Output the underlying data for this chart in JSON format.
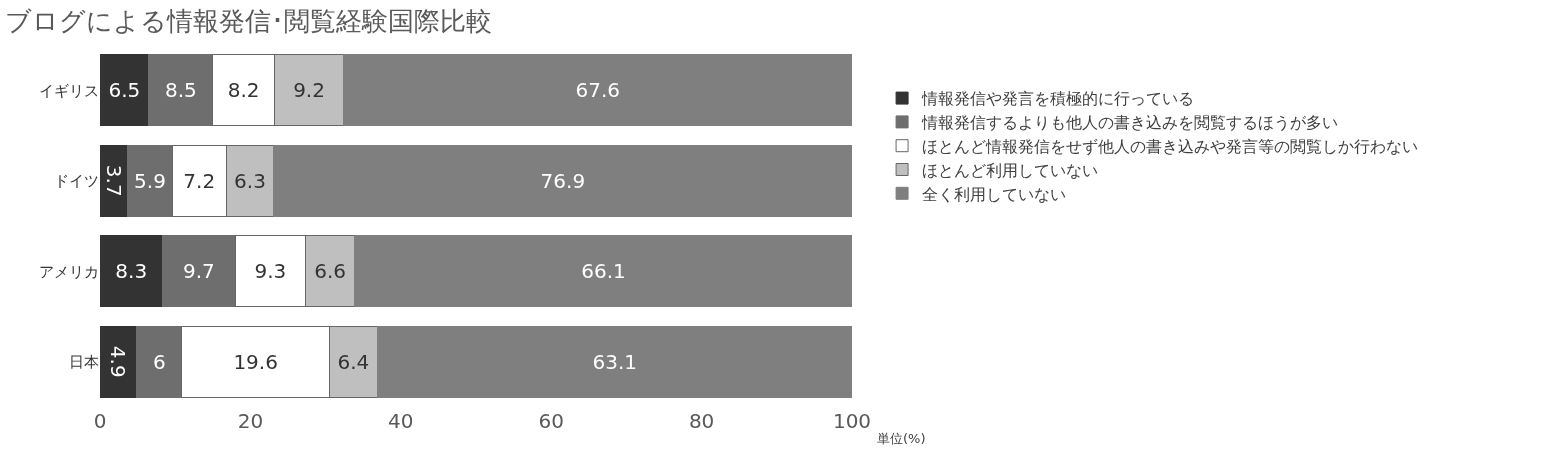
{
  "chart_data": {
    "type": "bar",
    "title": "ブログによる情報発信･閲覧経験国際比較",
    "orientation": "horizontal",
    "stacked": true,
    "categories": [
      "イギリス",
      "ドイツ",
      "アメリカ",
      "日本"
    ],
    "series": [
      {
        "name": "情報発信や発言を積極的に行っている",
        "color": "#333333",
        "values": [
          6.5,
          3.7,
          8.3,
          4.9
        ]
      },
      {
        "name": "情報発信するよりも他人の書き込みを閲覧するほうが多い",
        "color": "#6e6e6e",
        "values": [
          8.5,
          5.9,
          9.7,
          6
        ]
      },
      {
        "name": "ほとんど情報発信をせず他人の書き込みや発言等の閲覧しか行わない",
        "color": "#ffffff",
        "values": [
          8.2,
          7.2,
          9.3,
          19.6
        ]
      },
      {
        "name": "ほとんど利用していない",
        "color": "#bfbfbf",
        "values": [
          9.2,
          6.3,
          6.6,
          6.4
        ]
      },
      {
        "name": "全く利用していない",
        "color": "#7f7f7f",
        "values": [
          67.6,
          76.9,
          66.1,
          63.1
        ]
      }
    ],
    "xlim": [
      0,
      100
    ],
    "xticks": [
      0,
      20,
      40,
      60,
      80,
      100
    ],
    "data_labels": true,
    "grid": false,
    "legend": "right",
    "annotations": [
      "単位(%)"
    ]
  }
}
